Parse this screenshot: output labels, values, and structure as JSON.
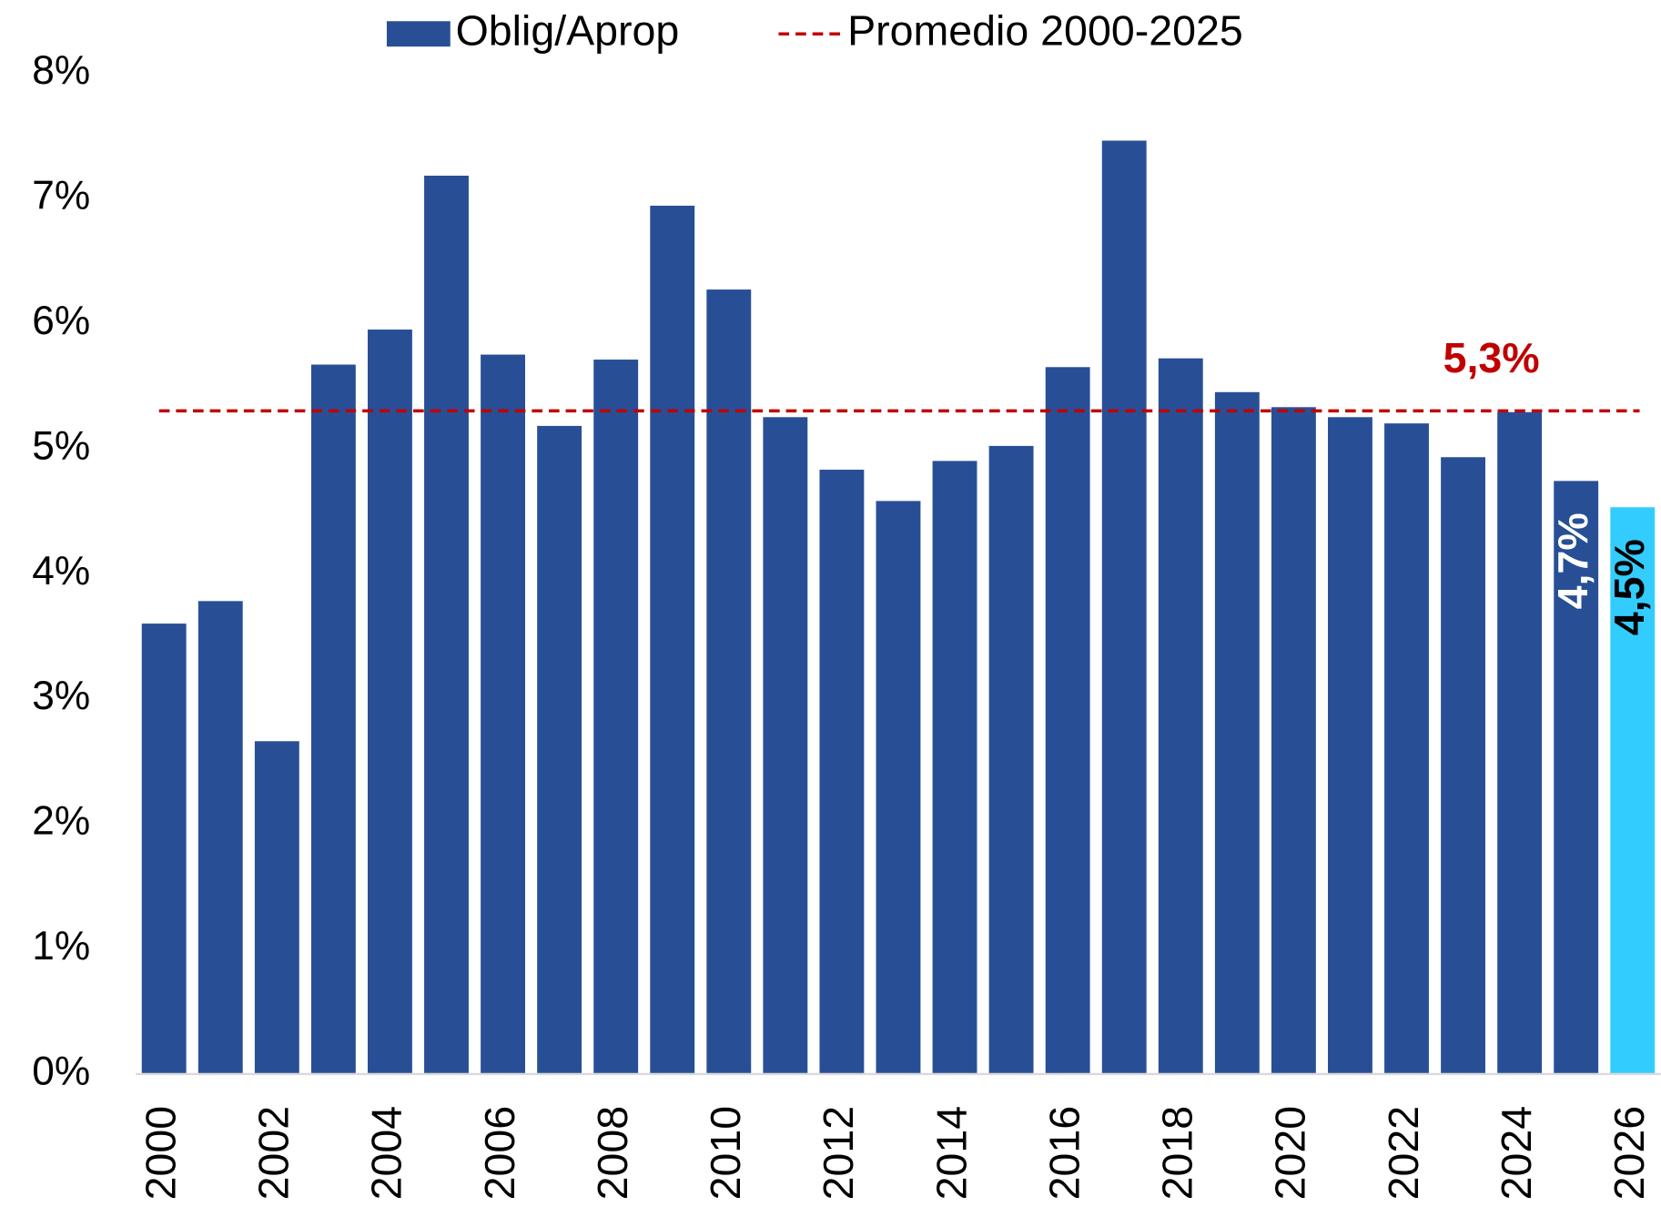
{
  "chart_data": {
    "type": "bar",
    "categories": [
      "2000",
      null,
      "2002",
      null,
      "2004",
      null,
      "2006",
      null,
      "2008",
      null,
      "2010",
      null,
      "2012",
      null,
      "2014",
      null,
      "2016",
      null,
      "2018",
      null,
      "2020",
      null,
      "2022",
      null,
      "2024",
      null,
      "2026"
    ],
    "series": [
      {
        "name": "Oblig/Aprop",
        "color": "#284f96",
        "values": [
          3.6,
          3.78,
          2.66,
          5.67,
          5.95,
          7.18,
          5.75,
          5.18,
          5.71,
          6.94,
          6.27,
          5.25,
          4.83,
          4.58,
          4.9,
          5.02,
          5.65,
          7.46,
          5.72,
          5.45,
          5.33,
          5.25,
          5.2,
          4.93,
          5.29,
          4.74,
          4.53
        ],
        "colors": [
          "#284f96",
          "#284f96",
          "#284f96",
          "#284f96",
          "#284f96",
          "#284f96",
          "#284f96",
          "#284f96",
          "#284f96",
          "#284f96",
          "#284f96",
          "#284f96",
          "#284f96",
          "#284f96",
          "#284f96",
          "#284f96",
          "#284f96",
          "#284f96",
          "#284f96",
          "#284f96",
          "#284f96",
          "#284f96",
          "#284f96",
          "#284f96",
          "#284f96",
          "#284f96",
          "#33ccff"
        ],
        "value_labels": [
          null,
          null,
          null,
          null,
          null,
          null,
          null,
          null,
          null,
          null,
          null,
          null,
          null,
          null,
          null,
          null,
          null,
          null,
          null,
          null,
          null,
          null,
          null,
          null,
          null,
          "4,7%",
          "4,5%"
        ],
        "value_label_colors": [
          null,
          null,
          null,
          null,
          null,
          null,
          null,
          null,
          null,
          null,
          null,
          null,
          null,
          null,
          null,
          null,
          null,
          null,
          null,
          null,
          null,
          null,
          null,
          null,
          null,
          "#ffffff",
          "#000000"
        ]
      }
    ],
    "reference_line": {
      "name": "Promedio 2000-2025",
      "value": 5.3,
      "label": "5,3%",
      "color": "#c00000"
    },
    "ylim": [
      0,
      8
    ],
    "yticks": [
      {
        "value": 0,
        "label": "0%"
      },
      {
        "value": 1,
        "label": "1%"
      },
      {
        "value": 2,
        "label": "2%"
      },
      {
        "value": 3,
        "label": "3%"
      },
      {
        "value": 4,
        "label": "4%"
      },
      {
        "value": 5,
        "label": "5%"
      },
      {
        "value": 6,
        "label": "6%"
      },
      {
        "value": 7,
        "label": "7%"
      },
      {
        "value": 8,
        "label": "8%"
      }
    ],
    "grid": false
  }
}
